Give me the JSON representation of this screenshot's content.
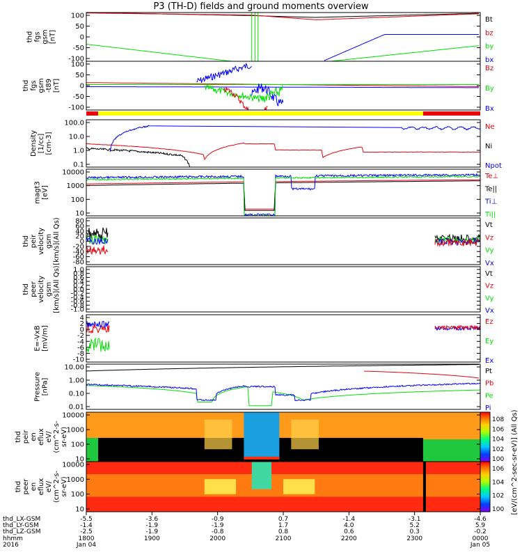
{
  "title": "P3 (TH-D) fields and ground moments overview",
  "colors": {
    "black": "#000000",
    "red": "#e8000b",
    "green": "#00e000",
    "blue": "#0000ff",
    "yellow": "#ffff00",
    "orange": "#ff7f00"
  },
  "chart_data": [
    {
      "id": "fgs_gsm",
      "type": "line",
      "ylabel": [
        "thd",
        "fgs",
        "gsm",
        "[nT]"
      ],
      "yticks": [
        "100",
        "50",
        "0",
        "-50",
        "-100"
      ],
      "ylim": [
        -100,
        100
      ],
      "series": [
        {
          "name": "Bt",
          "color": "black"
        },
        {
          "name": "bz",
          "color": "red"
        },
        {
          "name": "by",
          "color": "green"
        },
        {
          "name": "bx",
          "color": "blue"
        }
      ]
    },
    {
      "id": "fgs_gsm_t89",
      "type": "line",
      "ylabel": [
        "thd",
        "fgs",
        "gsm",
        "-t89",
        "[nT]"
      ],
      "yticks": [
        "100",
        "50",
        "0",
        "-50",
        "-100"
      ],
      "ylim": [
        -120,
        120
      ],
      "series": [
        {
          "name": "Bz",
          "color": "red"
        },
        {
          "name": "By",
          "color": "green"
        },
        {
          "name": "Bx",
          "color": "blue"
        }
      ]
    },
    {
      "id": "density",
      "type": "line",
      "ylabel": [
        "Density",
        "[1/cc]",
        "[cm-3]"
      ],
      "yticks": [
        "100.0",
        "10.0",
        "1.0",
        "0.1"
      ],
      "ylim": [
        0.1,
        100
      ],
      "scale": "log",
      "series": [
        {
          "name": "Ne",
          "color": "red"
        },
        {
          "name": "Ni",
          "color": "black"
        },
        {
          "name": "Npot",
          "color": "blue"
        }
      ]
    },
    {
      "id": "temp",
      "type": "line",
      "ylabel": [
        "magt3",
        "[eV]"
      ],
      "yticks": [
        "10000",
        "1000",
        "100",
        "10"
      ],
      "ylim": [
        5,
        10000
      ],
      "scale": "log",
      "series": [
        {
          "name": "Te⊥",
          "color": "red"
        },
        {
          "name": "Te||",
          "color": "black"
        },
        {
          "name": "Ti⊥",
          "color": "blue"
        },
        {
          "name": "Ti||",
          "color": "green"
        }
      ]
    },
    {
      "id": "peir_vel",
      "type": "line",
      "ylabel": [
        "thd",
        "peir",
        "velocity",
        "gsm",
        "[km/s](All Qs)"
      ],
      "yticks": [
        "80",
        "60",
        "40",
        "20",
        "0",
        "-20",
        "-40",
        "-60",
        "-80"
      ],
      "ylim": [
        -80,
        80
      ],
      "series": [
        {
          "name": "Vt",
          "color": "black"
        },
        {
          "name": "Vz",
          "color": "red"
        },
        {
          "name": "Vy",
          "color": "green"
        },
        {
          "name": "Vx",
          "color": "blue"
        }
      ]
    },
    {
      "id": "peer_vel",
      "type": "line",
      "ylabel": [
        "thd",
        "peer",
        "velocity",
        "gsm",
        "[km/s](All Qs)"
      ],
      "yticks": [
        "1.0",
        "0.8",
        "0.6",
        "0.4",
        "0.2",
        "0.0",
        "-0.2",
        "-0.4",
        "-0.6",
        "-0.8",
        "-1.0"
      ],
      "ylim": [
        -1,
        1
      ],
      "series": [
        {
          "name": "Vt",
          "color": "black"
        },
        {
          "name": "Vz",
          "color": "red"
        },
        {
          "name": "Vy",
          "color": "green"
        },
        {
          "name": "Vx",
          "color": "blue"
        }
      ]
    },
    {
      "id": "efield",
      "type": "line",
      "ylabel": [
        "E=-VxB",
        "[mV/m]"
      ],
      "yticks": [
        "4",
        "2",
        "0",
        "-2",
        "-4",
        "-6",
        "-8",
        "-10"
      ],
      "ylim": [
        -10,
        4
      ],
      "series": [
        {
          "name": "Ez",
          "color": "red"
        },
        {
          "name": "Ey",
          "color": "green"
        },
        {
          "name": "Ex",
          "color": "blue"
        }
      ]
    },
    {
      "id": "pressure",
      "type": "line",
      "ylabel": [
        "Pressure",
        "[nPa]"
      ],
      "yticks": [
        "10.00",
        "1.00",
        "0.10",
        "0.01"
      ],
      "ylim": [
        0.005,
        30
      ],
      "scale": "log",
      "series": [
        {
          "name": "Pt",
          "color": "black"
        },
        {
          "name": "Pb",
          "color": "red"
        },
        {
          "name": "Pe",
          "color": "green"
        },
        {
          "name": "Pi",
          "color": "blue"
        }
      ]
    },
    {
      "id": "peir_en",
      "type": "heatmap",
      "ylabel": [
        "thd",
        "peir",
        "en",
        "eflux",
        "eV/",
        "(cm^2-s-",
        "sr-eV)"
      ],
      "yticks": [
        "10000",
        "1000",
        "100",
        "10"
      ]
    },
    {
      "id": "peer_en",
      "type": "heatmap",
      "ylabel": [
        "thd",
        "peer",
        "en",
        "eflux",
        "eV/",
        "(cm^2-s-",
        "sr-eV)"
      ],
      "yticks": [
        "10000",
        "1000",
        "100",
        "10"
      ]
    }
  ],
  "colorbar": {
    "label": "[eV/(cm^2-sec-sr-eV)] (All Qs)",
    "ticks": [
      "10^8",
      "10^6",
      "10^4",
      "10^2",
      "10^0"
    ]
  },
  "x_axis": {
    "row_labels": [
      "thd_LX-GSM",
      "thd_LY-GSM",
      "thd_LZ-GSM",
      "hhmm",
      "2016"
    ],
    "columns": [
      [
        "-5.5",
        "-1.4",
        "-2.5",
        "1800",
        "Jan 04"
      ],
      [
        "-3.6",
        "-1.9",
        "-1.9",
        "1900",
        ""
      ],
      [
        "-0.9",
        "-1.9",
        "-0.8",
        "2000",
        ""
      ],
      [
        "0.7",
        "1.7",
        "0.8",
        "2100",
        ""
      ],
      [
        "-1.4",
        "4.0",
        "0.6",
        "2200",
        ""
      ],
      [
        "-3.1",
        "5.2",
        "0.3",
        "2300",
        ""
      ],
      [
        "-4.6",
        "5.9",
        "-0.2",
        "0000",
        "Jan 05"
      ]
    ]
  },
  "mode_bar": [
    {
      "from": 0.0,
      "to": 0.03,
      "color": "red"
    },
    {
      "from": 0.03,
      "to": 0.855,
      "color": "yellow"
    },
    {
      "from": 0.855,
      "to": 1.0,
      "color": "red"
    }
  ]
}
